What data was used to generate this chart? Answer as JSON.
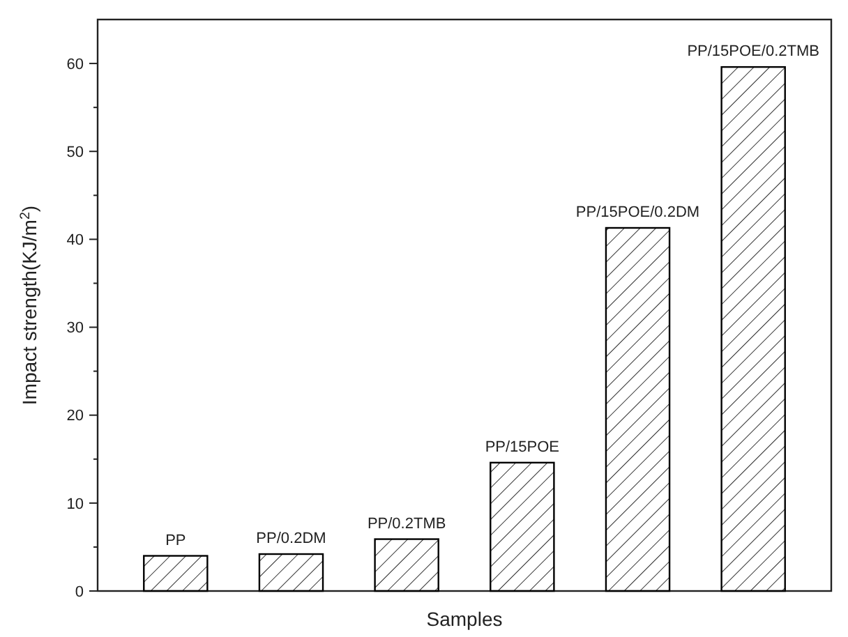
{
  "chart_data": {
    "type": "bar",
    "xlabel": "Samples",
    "ylabel": "Impact strength(KJ/m$^{2}$)",
    "categories": [
      "PP",
      "PP/0.2DM",
      "PP/0.2TMB",
      "PP/15POE",
      "PP/15POE/0.2DM",
      "PP/15POE/0.2TMB"
    ],
    "values": [
      4.0,
      4.2,
      5.9,
      14.6,
      41.3,
      59.6
    ],
    "color": "#000000",
    "ylim": [
      0,
      65
    ],
    "yticks": [
      0,
      {
        "value": 5,
        "label": null
      },
      10,
      {
        "value": 15,
        "label": null
      },
      20,
      {
        "value": 25,
        "label": null
      },
      30,
      {
        "value": 35,
        "label": null
      },
      40,
      {
        "value": 45,
        "label": null
      },
      50,
      {
        "value": 55,
        "label": null
      },
      60
    ]
  }
}
